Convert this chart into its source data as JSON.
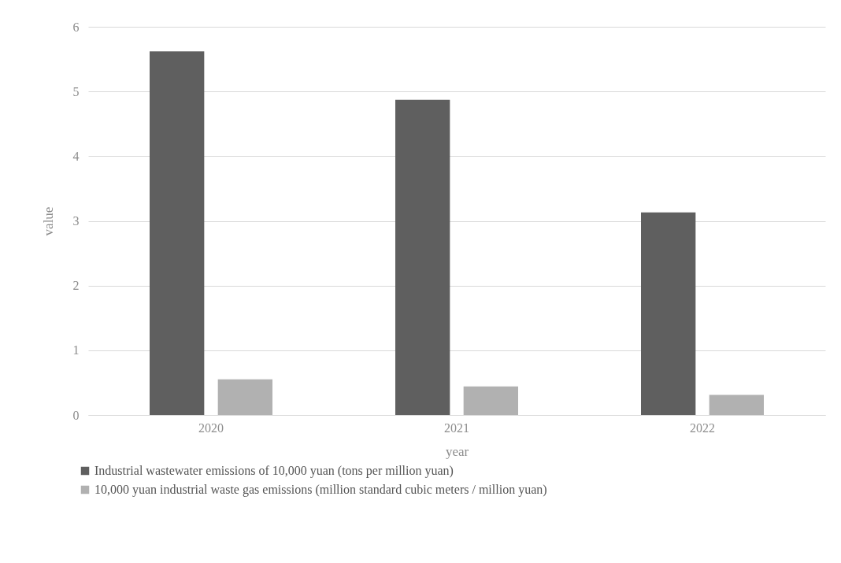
{
  "chart_data": {
    "type": "bar",
    "xlabel": "year",
    "ylabel": "value",
    "categories": [
      "2020",
      "2021",
      "2022"
    ],
    "series": [
      {
        "name": "Industrial wastewater emissions of 10,000 yuan (tons per million yuan)",
        "color": "#5f5f5f",
        "values": [
          5.62,
          4.87,
          3.13
        ]
      },
      {
        "name": "10,000 yuan industrial waste gas emissions (million standard cubic meters / million yuan)",
        "color": "#b1b1b1",
        "values": [
          0.55,
          0.44,
          0.31
        ]
      }
    ],
    "ylim": [
      0,
      6
    ],
    "yticks": [
      0,
      1,
      2,
      3,
      4,
      5,
      6
    ],
    "grid": "y",
    "legend": "bottom left"
  }
}
